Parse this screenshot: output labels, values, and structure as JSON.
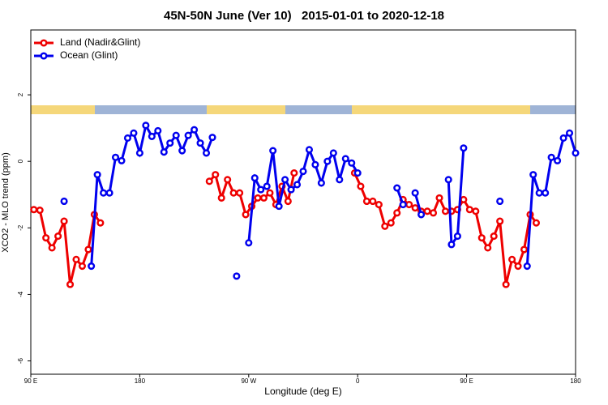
{
  "chart_data": {
    "type": "line",
    "title": "45N-50N June (Ver 10)   2015-01-01 to 2020-12-18",
    "x_label": "Longitude (deg E)",
    "y_label": "XCO2 - MLO trend (ppm)",
    "xlim": [
      90,
      540
    ],
    "ylim": [
      -6.4,
      3.95
    ],
    "xticks": [
      {
        "value": 90,
        "label": "90 E"
      },
      180,
      {
        "value": 270,
        "label": "90 W"
      },
      {
        "value": 360,
        "label": "0"
      },
      {
        "value": 450,
        "label": "90 E"
      },
      {
        "value": 540,
        "label": "180"
      }
    ],
    "yticks": [
      2,
      0,
      -2,
      -4,
      -6
    ],
    "legend": "top-left",
    "series": [
      {
        "name": "Land (Nadir&Glint)",
        "color": "#ee0000",
        "x": [
          92.5,
          97.5,
          102.5,
          107.5,
          112.5,
          117.5,
          122.5,
          127.5,
          132.5,
          137.5,
          142.5,
          147.5,
          150,
          237.5,
          242.5,
          247.5,
          252.5,
          257.5,
          262.5,
          267.5,
          272.5,
          277.5,
          282.5,
          287.5,
          292.5,
          297.5,
          302.5,
          307.5,
          310,
          357.5,
          362.5,
          367.5,
          372.5,
          377.5,
          382.5,
          387.5,
          392.5,
          397.5,
          402.5,
          407.5,
          412.5,
          417.5,
          422.5,
          427.5,
          432.5,
          437.5,
          442.5,
          447.5,
          452.5,
          457.5,
          462.5,
          467.5,
          472.5,
          477.5,
          482.5,
          487.5,
          492.5,
          497.5,
          502.5,
          507.5
        ],
        "values": [
          -1.45,
          -1.47,
          -2.3,
          -2.6,
          -2.25,
          -1.8,
          -3.7,
          -2.95,
          -3.15,
          -2.65,
          -1.6,
          -1.85,
          null,
          -0.6,
          -0.4,
          -1.1,
          -0.55,
          -0.95,
          -0.95,
          -1.6,
          -1.35,
          -1.1,
          -1.1,
          -0.95,
          -1.3,
          -0.75,
          -1.2,
          -0.35,
          null,
          -0.35,
          -0.75,
          -1.2,
          -1.2,
          -1.3,
          -1.95,
          -1.85,
          -1.55,
          -1.15,
          -1.3,
          -1.4,
          -1.5,
          -1.5,
          -1.55,
          -1.1,
          -1.5,
          -1.5,
          -1.45,
          -1.15,
          -1.45,
          -1.5,
          -2.3,
          -2.6,
          -2.25,
          -1.8,
          -3.7,
          -2.95,
          -3.15,
          -2.65,
          -1.6,
          -1.85
        ]
      },
      {
        "name": "Ocean (Glint)",
        "color": "#0000ee",
        "x": [
          117.5,
          122.5,
          140,
          145,
          150,
          155,
          160,
          165,
          170,
          175,
          180,
          185,
          190,
          195,
          200,
          205,
          210,
          215,
          220,
          225,
          230,
          235,
          240,
          245,
          260,
          265,
          270,
          275,
          280,
          285,
          290,
          295,
          300,
          305,
          310,
          315,
          320,
          325,
          330,
          335,
          340,
          345,
          350,
          355,
          360,
          365,
          392.5,
          397.5,
          402.5,
          407.5,
          412.5,
          417.5,
          435,
          437.5,
          442.5,
          447.5,
          452.5,
          477.5,
          482.5,
          500,
          505,
          510,
          515,
          520,
          525,
          530,
          535,
          540
        ],
        "values": [
          -1.2,
          null,
          -3.15,
          -0.4,
          -0.95,
          -0.95,
          0.12,
          0.02,
          0.7,
          0.85,
          0.25,
          1.08,
          0.75,
          0.92,
          0.28,
          0.55,
          0.78,
          0.32,
          0.78,
          0.95,
          0.55,
          0.25,
          0.72,
          null,
          -3.45,
          null,
          -2.45,
          -0.5,
          -0.85,
          -0.75,
          0.32,
          -1.35,
          -0.55,
          -0.85,
          -0.7,
          -0.3,
          0.35,
          -0.1,
          -0.65,
          0,
          0.25,
          -0.55,
          0.08,
          -0.05,
          -0.35,
          null,
          -0.8,
          -1.3,
          null,
          -0.95,
          -1.6,
          null,
          -0.55,
          -2.5,
          -2.25,
          0.4,
          null,
          -1.2,
          null,
          -3.15,
          -0.4,
          -0.95,
          -0.95,
          0.12,
          0.02,
          0.7,
          0.85,
          0.25
        ]
      }
    ]
  }
}
